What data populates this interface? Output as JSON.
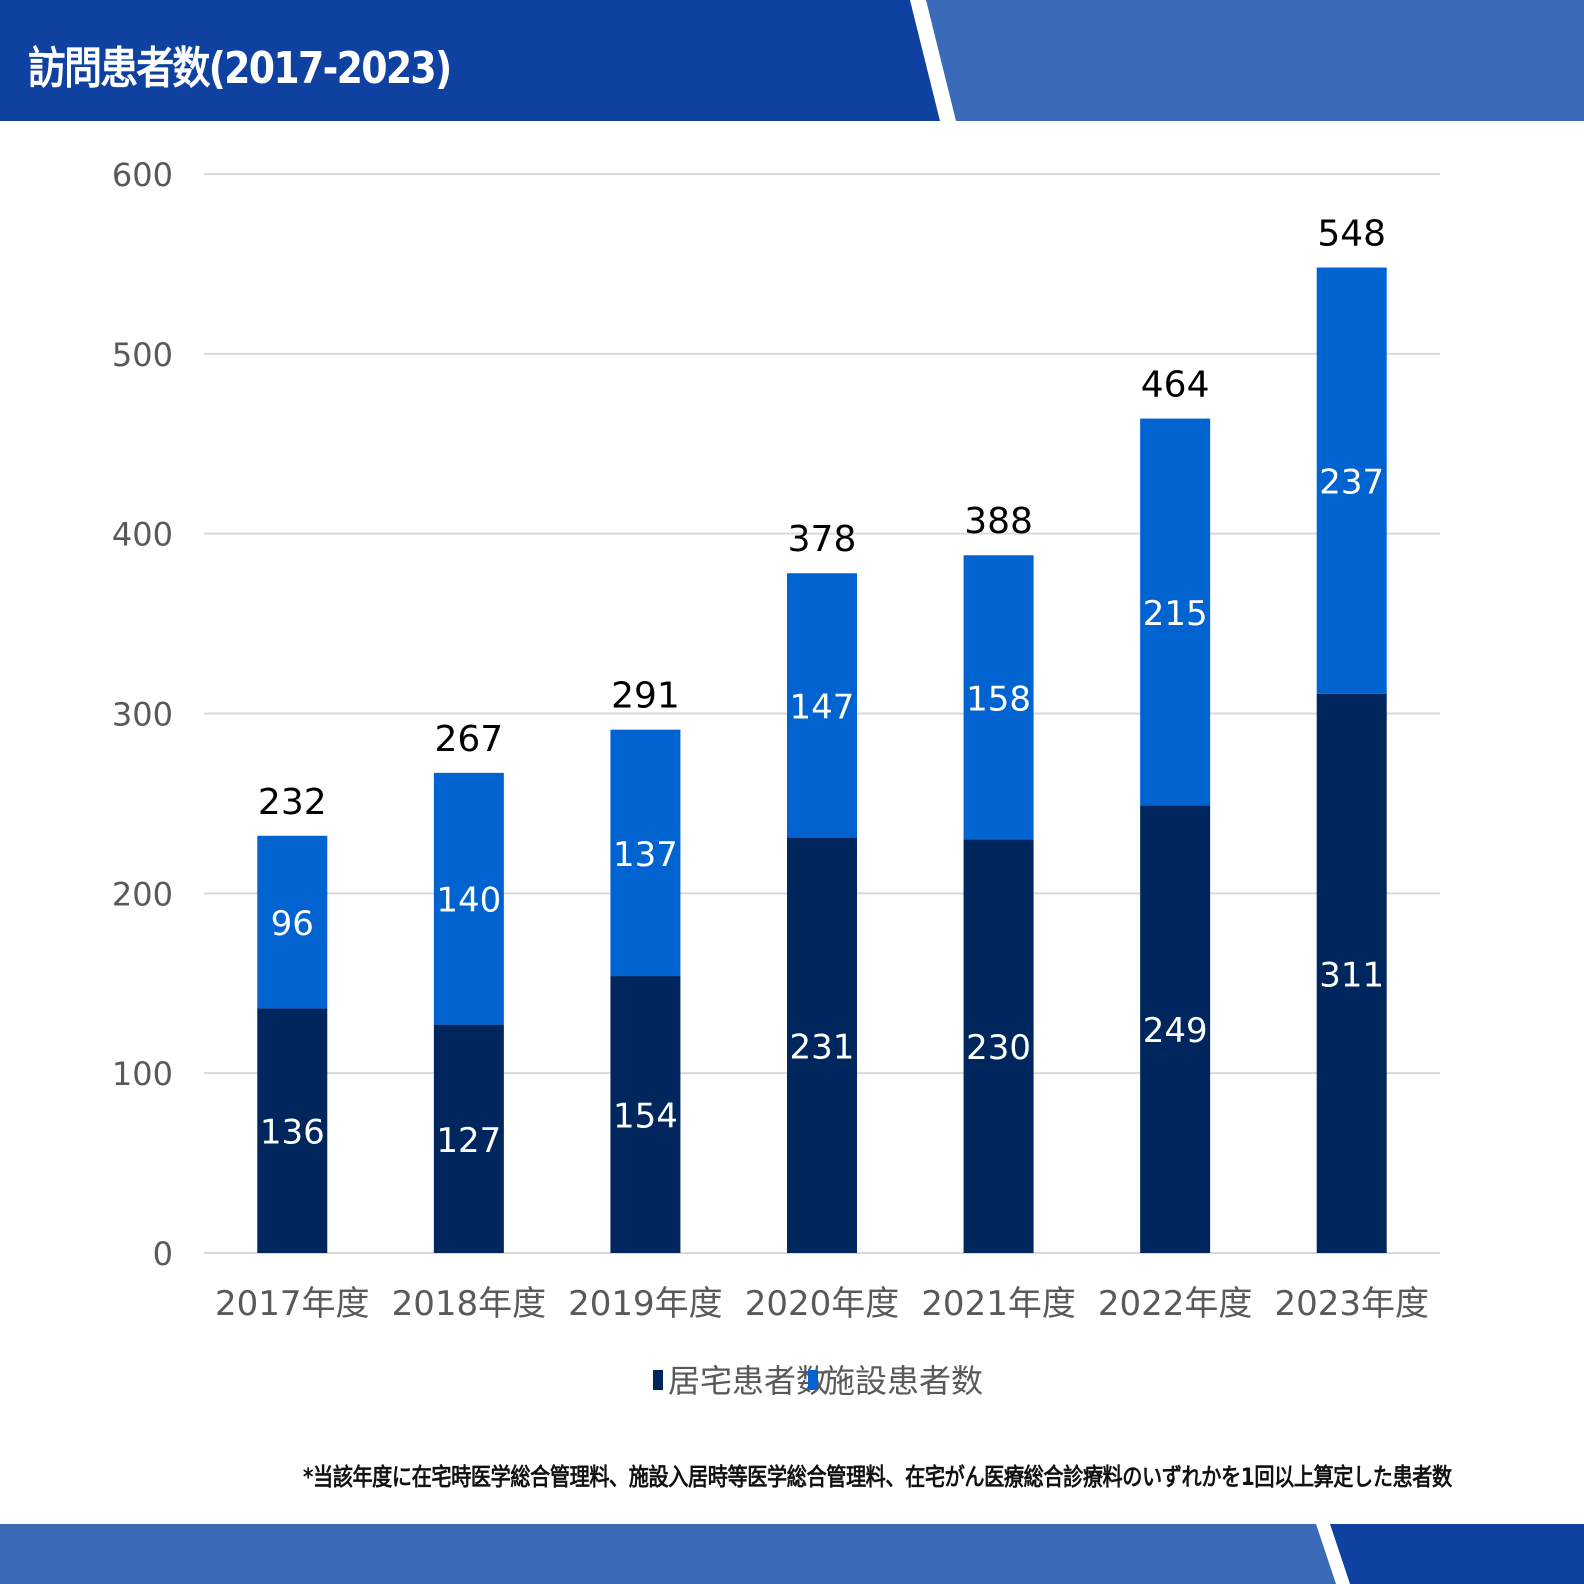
{
  "header": {
    "title": "訪問患者数(2017-2023)"
  },
  "footnote": "*当該年度に在宅時医学総合管理料、施設入居時等医学総合管理料、在宅がん医療総合診療料のいずれかを1回以上算定した患者数",
  "colors": {
    "header_dark": "#0F41A0",
    "header_light": "#3A6AB8",
    "series_home": "#00265E",
    "series_facility": "#0063D0"
  },
  "chart_data": {
    "type": "bar",
    "stacked": true,
    "categories": [
      "2017年度",
      "2018年度",
      "2019年度",
      "2020年度",
      "2021年度",
      "2022年度",
      "2023年度"
    ],
    "series": [
      {
        "name": "居宅患者数",
        "values": [
          136,
          127,
          154,
          231,
          230,
          249,
          311
        ],
        "color": "#00265E"
      },
      {
        "name": "施設患者数",
        "values": [
          96,
          140,
          137,
          147,
          158,
          215,
          237
        ],
        "color": "#0063D0"
      }
    ],
    "totals": [
      232,
      267,
      291,
      378,
      388,
      464,
      548
    ],
    "ylim": [
      0,
      600
    ],
    "yticks": [
      0,
      100,
      200,
      300,
      400,
      500,
      600
    ],
    "grid": true,
    "legend": "bottom"
  }
}
